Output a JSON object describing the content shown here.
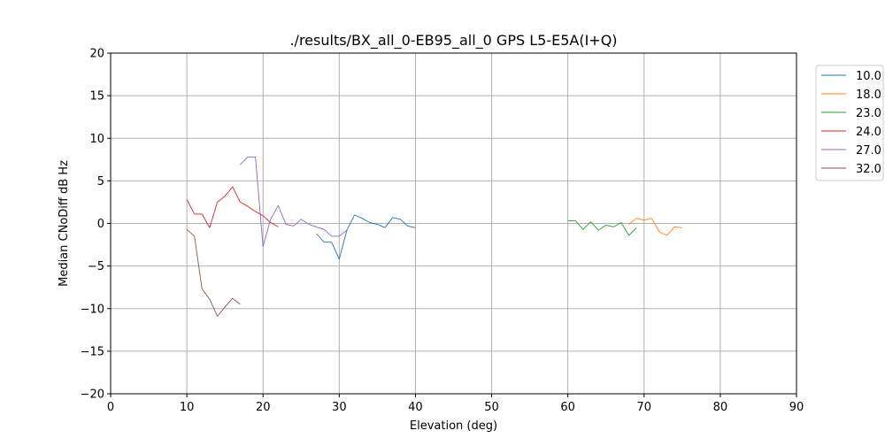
{
  "chart_data": {
    "type": "line",
    "title": "./results/BX_all_0-EB95_all_0 GPS L5-E5A(I+Q)",
    "xlabel": "Elevation (deg)",
    "ylabel": "Median CNoDiff dB Hz",
    "xlim": [
      0,
      90
    ],
    "ylim": [
      -20,
      20
    ],
    "xticks": [
      0,
      10,
      20,
      30,
      40,
      50,
      60,
      70,
      80,
      90
    ],
    "yticks": [
      -20,
      -15,
      -10,
      -5,
      0,
      5,
      10,
      15,
      20
    ],
    "xtick_labels": [
      "0",
      "10",
      "20",
      "30",
      "40",
      "50",
      "60",
      "70",
      "80",
      "90"
    ],
    "ytick_labels": [
      "−20",
      "−15",
      "−10",
      "−5",
      "0",
      "5",
      "10",
      "15",
      "20"
    ],
    "grid": true,
    "legend_position": "outside-top-right",
    "series": [
      {
        "name": "10.0",
        "color": "#1f77b4",
        "points": [
          [
            27,
            -1.2
          ],
          [
            28,
            -2.2
          ],
          [
            29,
            -2.2
          ],
          [
            30,
            -4.2
          ],
          [
            31,
            -0.8
          ],
          [
            32,
            1.0
          ],
          [
            33,
            0.6
          ],
          [
            34,
            0.1
          ],
          [
            35,
            -0.1
          ],
          [
            36,
            -0.5
          ],
          [
            37,
            0.7
          ],
          [
            38,
            0.5
          ],
          [
            39,
            -0.3
          ],
          [
            40,
            -0.5
          ]
        ]
      },
      {
        "name": "18.0",
        "color": "#ff7f0e",
        "points": [
          [
            68,
            -0.1
          ],
          [
            69,
            0.6
          ],
          [
            70,
            0.4
          ],
          [
            71,
            0.6
          ],
          [
            72,
            -1.0
          ],
          [
            73,
            -1.4
          ],
          [
            74,
            -0.4
          ],
          [
            75,
            -0.5
          ]
        ]
      },
      {
        "name": "23.0",
        "color": "#2ca02c",
        "points": [
          [
            60,
            0.3
          ],
          [
            61,
            0.3
          ],
          [
            62,
            -0.7
          ],
          [
            63,
            0.2
          ],
          [
            64,
            -0.8
          ],
          [
            65,
            -0.2
          ],
          [
            66,
            -0.4
          ],
          [
            67,
            0.1
          ],
          [
            68,
            -1.4
          ],
          [
            69,
            -0.5
          ]
        ]
      },
      {
        "name": "24.0",
        "color": "#d62728",
        "points": [
          [
            10,
            2.8
          ],
          [
            11,
            1.1
          ],
          [
            12,
            1.1
          ],
          [
            13,
            -0.5
          ],
          [
            14,
            2.5
          ],
          [
            15,
            3.2
          ],
          [
            16,
            4.3
          ],
          [
            17,
            2.5
          ],
          [
            18,
            2.0
          ],
          [
            19,
            1.4
          ],
          [
            20,
            0.9
          ],
          [
            21,
            0.1
          ],
          [
            22,
            -0.4
          ]
        ]
      },
      {
        "name": "27.0",
        "color": "#9467bd",
        "points": [
          [
            17,
            6.9
          ],
          [
            18,
            7.8
          ],
          [
            19,
            7.8
          ],
          [
            20,
            -2.7
          ],
          [
            21,
            0.5
          ],
          [
            22,
            2.1
          ],
          [
            23,
            -0.1
          ],
          [
            24,
            -0.3
          ],
          [
            25,
            0.5
          ],
          [
            26,
            -0.1
          ],
          [
            27,
            -0.4
          ],
          [
            28,
            -0.7
          ],
          [
            29,
            -1.5
          ],
          [
            30,
            -1.5
          ],
          [
            31,
            -0.8
          ]
        ]
      },
      {
        "name": "32.0",
        "color": "#8c564b",
        "points": [
          [
            10,
            -0.7
          ],
          [
            11,
            -1.5
          ],
          [
            12,
            -7.7
          ],
          [
            13,
            -8.9
          ],
          [
            14,
            -10.9
          ],
          [
            15,
            -9.8
          ],
          [
            16,
            -8.8
          ],
          [
            17,
            -9.5
          ]
        ]
      }
    ]
  }
}
